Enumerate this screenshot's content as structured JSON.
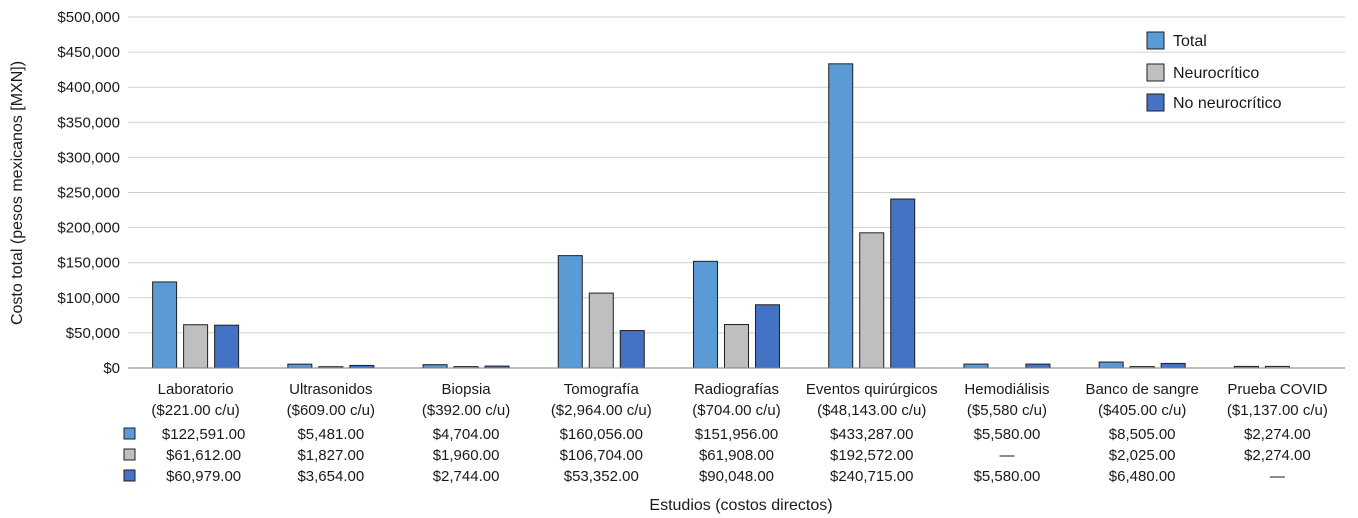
{
  "chart_data": {
    "type": "bar",
    "title": "",
    "xlabel": "Estudios (costos directos)",
    "ylabel": "Costo total (pesos mexicanos [MXN])",
    "ylim": [
      0,
      500000
    ],
    "yticks": [
      "$0",
      "$50,000",
      "$100,000",
      "$150,000",
      "$200,000",
      "$250,000",
      "$300,000",
      "$350,000",
      "$400,000",
      "$450,000",
      "$500,000"
    ],
    "ytick_values": [
      0,
      50000,
      100000,
      150000,
      200000,
      250000,
      300000,
      350000,
      400000,
      450000,
      500000
    ],
    "grid": "horizontal",
    "legend_position": "top-right",
    "categories": [
      {
        "name": "Laboratorio",
        "unit_cost": "($221.00 c/u)"
      },
      {
        "name": "Ultrasonidos",
        "unit_cost": "($609.00 c/u)"
      },
      {
        "name": "Biopsia",
        "unit_cost": "($392.00 c/u)"
      },
      {
        "name": "Tomografía",
        "unit_cost": "($2,964.00 c/u)"
      },
      {
        "name": "Radiografías",
        "unit_cost": "($704.00 c/u)"
      },
      {
        "name": "Eventos quirúrgicos",
        "unit_cost": "($48,143.00 c/u)"
      },
      {
        "name": "Hemodiálisis",
        "unit_cost": "($5,580 c/u)"
      },
      {
        "name": "Banco de sangre",
        "unit_cost": "($405.00 c/u)"
      },
      {
        "name": "Prueba COVID",
        "unit_cost": "($1,137.00 c/u)"
      }
    ],
    "series": [
      {
        "name": "Total",
        "color": "#5b9bd5",
        "values": [
          122591,
          5481,
          4704,
          160056,
          151956,
          433287,
          5580,
          8505,
          2274
        ],
        "labels": [
          "$122,591.00",
          "$5,481.00",
          "$4,704.00",
          "$160,056.00",
          "$151,956.00",
          "$433,287.00",
          "$5,580.00",
          "$8,505.00",
          "$2,274.00"
        ]
      },
      {
        "name": "Neurocrítico",
        "color": "#bfbfbf",
        "values": [
          61612,
          1827,
          1960,
          106704,
          61908,
          192572,
          null,
          2025,
          2274
        ],
        "labels": [
          "$61,612.00",
          "$1,827.00",
          "$1,960.00",
          "$106,704.00",
          "$61,908.00",
          "$192,572.00",
          "—",
          "$2,025.00",
          "$2,274.00"
        ]
      },
      {
        "name": "No neurocrítico",
        "color": "#4472c4",
        "values": [
          60979,
          3654,
          2744,
          53352,
          90048,
          240715,
          5580,
          6480,
          null
        ],
        "labels": [
          "$60,979.00",
          "$3,654.00",
          "$2,744.00",
          "$53,352.00",
          "$90,048.00",
          "$240,715.00",
          "$5,580.00",
          "$6,480.00",
          "—"
        ]
      }
    ]
  }
}
